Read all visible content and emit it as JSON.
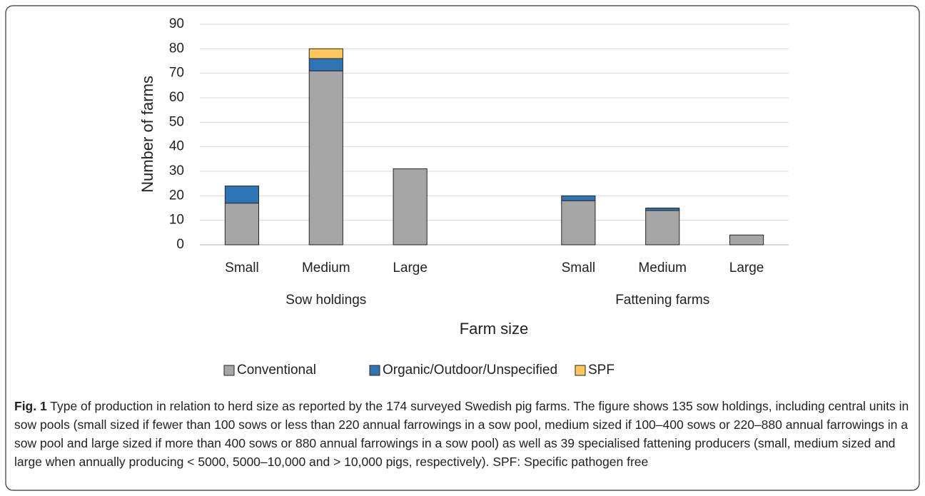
{
  "chart_data": {
    "type": "bar",
    "stacked": true,
    "categories": [
      "Small",
      "Medium",
      "Large",
      null,
      "Small",
      "Medium",
      "Large"
    ],
    "groups": [
      "Sow holdings",
      "Fattening farms"
    ],
    "series": [
      {
        "name": "Conventional",
        "color": "#a6a6a6",
        "values": [
          17,
          71,
          31,
          null,
          18,
          14,
          4
        ]
      },
      {
        "name": "Organic/Outdoor/Unspecified",
        "color": "#2e75b6",
        "values": [
          7,
          5,
          0,
          null,
          2,
          1,
          0
        ]
      },
      {
        "name": "SPF",
        "color": "#ffc65a",
        "values": [
          0,
          4,
          0,
          null,
          0,
          0,
          0
        ]
      }
    ],
    "ylabel": "Number of farms",
    "xlabel": "Farm size",
    "ylim": [
      0,
      90
    ],
    "yticks": [
      0,
      10,
      20,
      30,
      40,
      50,
      60,
      70,
      80,
      90
    ],
    "grid": true,
    "legend": "bottom"
  },
  "caption": {
    "label": "Fig. 1",
    "text": "Type of production in relation to herd size as reported by the 174 surveyed Swedish pig farms. The figure shows 135 sow holdings, including central units in sow pools (small sized if fewer than 100 sows or less than 220 annual farrowings in a sow pool, medium sized if 100–400 sows or 220–880 annual farrowings in a sow pool and large sized if more than 400 sows or 880 annual farrowings in a sow pool) as well as 39 specialised fattening producers (small, medium sized and large when annually producing < 5000, 5000–10,000 and > 10,000 pigs, respectively). SPF: Specific pathogen free"
  }
}
